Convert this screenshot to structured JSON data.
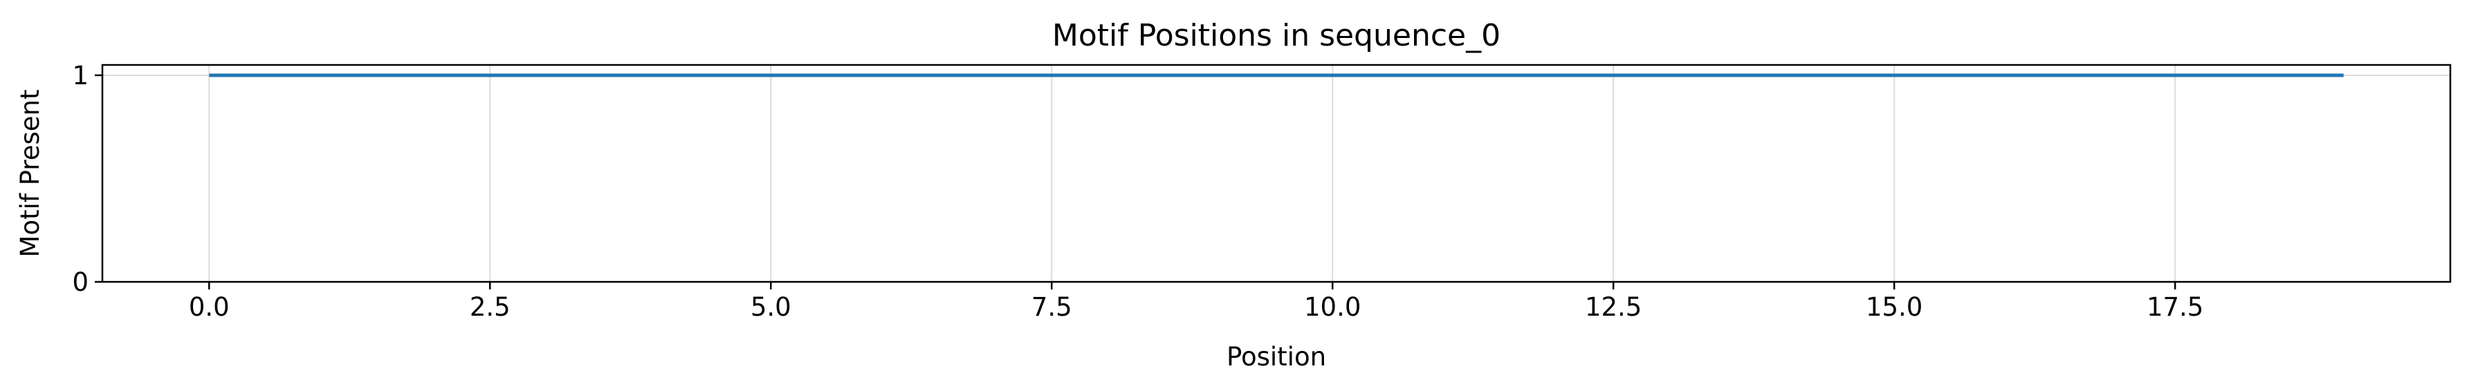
{
  "chart_data": {
    "type": "line",
    "title": "Motif Positions in sequence_0",
    "xlabel": "Position",
    "ylabel": "Motif Present",
    "xlim": [
      -0.95,
      19.95
    ],
    "ylim": [
      0,
      1.05
    ],
    "x_ticks": [
      0.0,
      2.5,
      5.0,
      7.5,
      10.0,
      12.5,
      15.0,
      17.5
    ],
    "x_tick_labels": [
      "0.0",
      "2.5",
      "5.0",
      "7.5",
      "10.0",
      "12.5",
      "15.0",
      "17.5"
    ],
    "y_ticks": [
      0,
      1
    ],
    "y_tick_labels": [
      "0",
      "1"
    ],
    "grid": true,
    "legend": "none",
    "series": [
      {
        "color": "#1f77b4",
        "x": [
          0,
          1,
          2,
          3,
          4,
          5,
          6,
          7,
          8,
          9,
          10,
          11,
          12,
          13,
          14,
          15,
          16,
          17,
          18,
          19
        ],
        "y": [
          1,
          1,
          1,
          1,
          1,
          1,
          1,
          1,
          1,
          1,
          1,
          1,
          1,
          1,
          1,
          1,
          1,
          1,
          1,
          1
        ]
      }
    ]
  }
}
